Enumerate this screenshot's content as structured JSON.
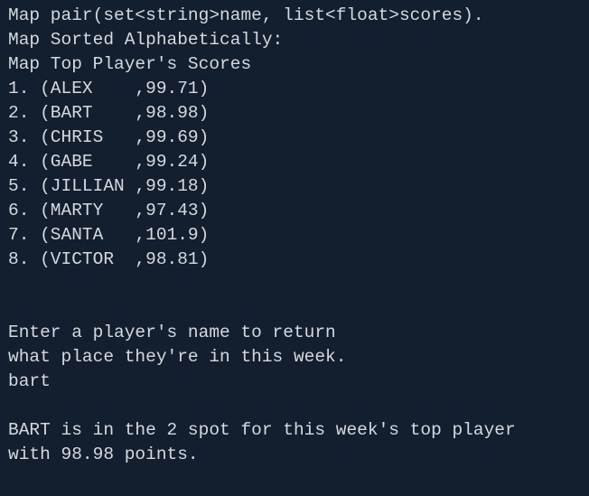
{
  "header": [
    "Map pair(set<string>name, list<float>scores).",
    "Map Sorted Alphabetically:",
    "Map Top Player's Scores"
  ],
  "entries": [
    "1. (ALEX    ,99.71)",
    "2. (BART    ,98.98)",
    "3. (CHRIS   ,99.69)",
    "4. (GABE    ,99.24)",
    "5. (JILLIAN ,99.18)",
    "6. (MARTY   ,97.43)",
    "7. (SANTA   ,101.9)",
    "8. (VICTOR  ,98.81)"
  ],
  "prompt": [
    "Enter a player's name to return",
    "what place they're in this week."
  ],
  "input": "bart",
  "result": [
    "BART is in the 2 spot for this week's top player",
    "with 98.98 points."
  ]
}
